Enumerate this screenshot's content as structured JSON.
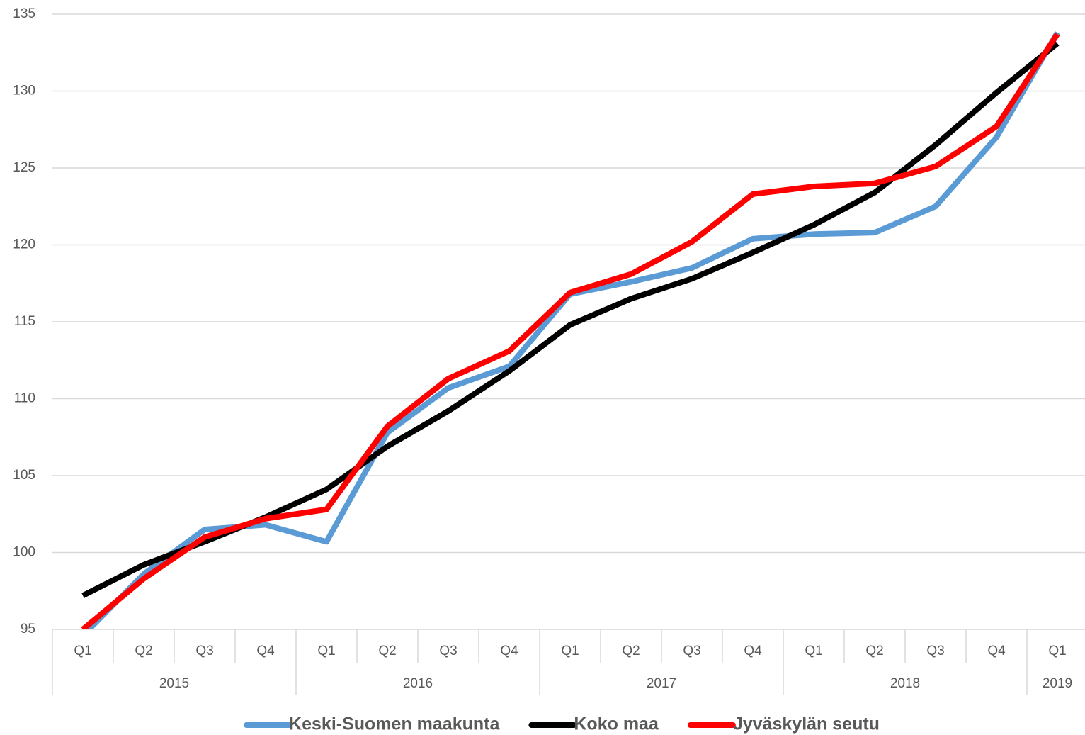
{
  "chart_data": {
    "type": "line",
    "groups": [
      {
        "name": "2015",
        "categories": [
          "Q1",
          "Q2",
          "Q3",
          "Q4"
        ]
      },
      {
        "name": "2016",
        "categories": [
          "Q1",
          "Q2",
          "Q3",
          "Q4"
        ]
      },
      {
        "name": "2017",
        "categories": [
          "Q1",
          "Q2",
          "Q3",
          "Q4"
        ]
      },
      {
        "name": "2018",
        "categories": [
          "Q1",
          "Q2",
          "Q3",
          "Q4"
        ]
      },
      {
        "name": "2019",
        "categories": [
          "Q1"
        ]
      }
    ],
    "series": [
      {
        "name": "Keski-Suomen maakunta",
        "color": "#5b9bd5",
        "values": [
          94.6,
          98.6,
          101.5,
          101.8,
          100.7,
          107.8,
          110.7,
          112.1,
          116.8,
          117.6,
          118.5,
          120.4,
          120.7,
          120.8,
          122.5,
          127.0,
          133.8
        ]
      },
      {
        "name": "Koko maa",
        "color": "#000000",
        "values": [
          97.2,
          99.2,
          100.7,
          102.3,
          104.1,
          106.9,
          109.2,
          111.8,
          114.8,
          116.5,
          117.8,
          119.5,
          121.3,
          123.4,
          126.5,
          129.9,
          133.1
        ]
      },
      {
        "name": "Jyväskylän seutu",
        "color": "#ff0000",
        "values": [
          95.0,
          98.3,
          101.0,
          102.2,
          102.8,
          108.2,
          111.3,
          113.1,
          116.9,
          118.1,
          120.2,
          123.3,
          123.8,
          124.0,
          125.1,
          127.7,
          133.7
        ]
      }
    ],
    "ylim": [
      95,
      135
    ],
    "yticks": [
      95,
      100,
      105,
      110,
      115,
      120,
      125,
      130,
      135
    ],
    "grid": true,
    "legend": "bottom"
  }
}
